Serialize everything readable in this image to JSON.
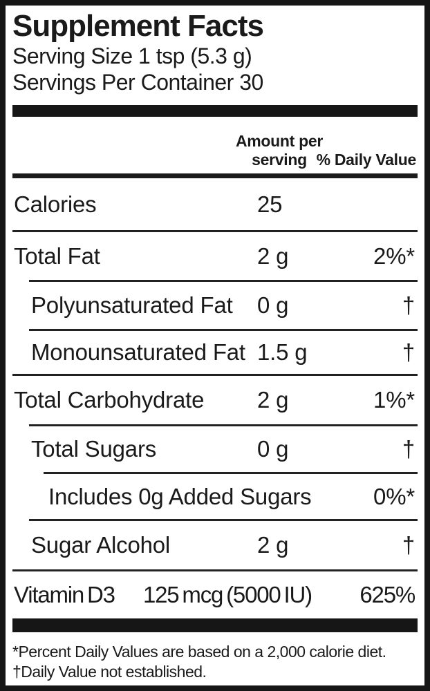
{
  "label": {
    "title": "Supplement Facts",
    "serving_size": "Serving Size 1 tsp (5.3 g)",
    "servings_per_container": "Servings Per Container 30",
    "column_headers": {
      "amount_line1": "Amount per",
      "amount_line2": "serving",
      "daily_value": "% Daily Value"
    },
    "rows": [
      {
        "name": "Calories",
        "amount": "25",
        "dv": ""
      },
      {
        "name": "Total Fat",
        "amount": "2 g",
        "dv": "2%*"
      },
      {
        "name": "Polyunsaturated Fat",
        "amount": "0 g",
        "dv": "†"
      },
      {
        "name": "Monounsaturated Fat",
        "amount": "1.5 g",
        "dv": "†"
      },
      {
        "name": "Total Carbohydrate",
        "amount": "2 g",
        "dv": "1%*"
      },
      {
        "name": "Total Sugars",
        "amount": "0 g",
        "dv": "†"
      },
      {
        "name": "Includes 0g Added Sugars",
        "amount": "",
        "dv": "0%*"
      },
      {
        "name": "Sugar Alcohol",
        "amount": "2 g",
        "dv": "†"
      },
      {
        "name": "Vitamin D3",
        "amount": "125 mcg (5000 IU)",
        "dv": "625%"
      }
    ],
    "footnotes": {
      "percent_basis": "*Percent Daily Values are based on a 2,000 calorie diet.",
      "not_established": "†Daily Value not established."
    },
    "colors": {
      "ink": "#1a1a1a",
      "background": "#ffffff",
      "border": "#161616"
    }
  }
}
